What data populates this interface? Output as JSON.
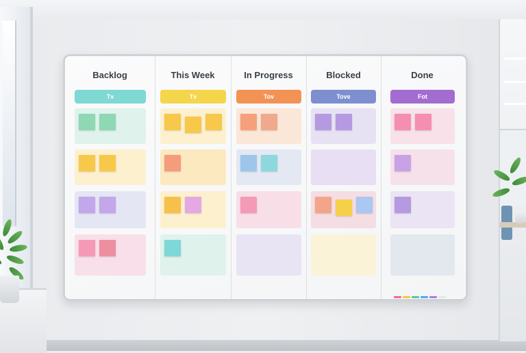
{
  "board": {
    "columns": [
      {
        "title": "Backlog",
        "tag": "Tv",
        "tag_color": "#7ed8d3",
        "rows": [
          {
            "pad": "#dff2ec",
            "notes": [
              "#8fd8b4",
              "#8fd8b4"
            ]
          },
          {
            "pad": "#fdf0cf",
            "notes": [
              "#f7c84a",
              "#f7c84a"
            ]
          },
          {
            "pad": "#e4e6f4",
            "notes": [
              "#c4a6ea",
              "#c4a6ea"
            ]
          },
          {
            "pad": "#f8dfe9",
            "notes": [
              "#f59ab6",
              "#ee8fa0"
            ]
          }
        ]
      },
      {
        "title": "This Week",
        "tag": "Tv",
        "tag_color": "#f5d54a",
        "rows": [
          {
            "pad": "#fdf0cf",
            "notes": [
              "#f7c84a",
              "#f7c84a",
              "#f7c84a"
            ]
          },
          {
            "pad": "#fde9bf",
            "notes": [
              "#f59c7c"
            ]
          },
          {
            "pad": "#fdf0cf",
            "notes": [
              "#f7c04a",
              "#e6a8e2"
            ]
          },
          {
            "pad": "#dff2ec",
            "notes": [
              "#7fd7d8"
            ]
          }
        ]
      },
      {
        "title": "In Progress",
        "tag": "Tov",
        "tag_color": "#f39255",
        "rows": [
          {
            "pad": "#fbe7d8",
            "notes": [
              "#f5a07a",
              "#f0a98c"
            ]
          },
          {
            "pad": "#e3e8f3",
            "notes": [
              "#9ec6ea",
              "#8dd8df"
            ]
          },
          {
            "pad": "#f8dfe7",
            "notes": [
              "#f59ab6"
            ]
          },
          {
            "pad": "#e8e4f4",
            "notes": []
          }
        ]
      },
      {
        "title": "Blocked",
        "tag": "Tove",
        "tag_color": "#7e8fd0",
        "rows": [
          {
            "pad": "#e6e2f3",
            "notes": [
              "#b59ae2",
              "#b59ae2"
            ]
          },
          {
            "pad": "#e9dff4",
            "notes": []
          },
          {
            "pad": "#f5dde4",
            "notes": [
              "#f3a58a",
              "#f7d04a",
              "#a9c8f2"
            ]
          },
          {
            "pad": "#fbf3d8",
            "notes": []
          }
        ]
      },
      {
        "title": "Done",
        "tag": "Fot",
        "tag_color": "#a26cd0",
        "rows": [
          {
            "pad": "#f8e1e8",
            "notes": [
              "#f58fb2",
              "#f58fb2"
            ]
          },
          {
            "pad": "#f6e1ea",
            "notes": [
              "#c9a2e6"
            ]
          },
          {
            "pad": "#ebe4f4",
            "notes": [
              "#b59ae2"
            ]
          },
          {
            "pad": "#e3e8ef",
            "notes": []
          }
        ]
      }
    ]
  },
  "markers": [
    "#f06c8e",
    "#f5c542",
    "#58c7a0",
    "#5aa6e8",
    "#a97ee0",
    "#e6e6e6"
  ]
}
